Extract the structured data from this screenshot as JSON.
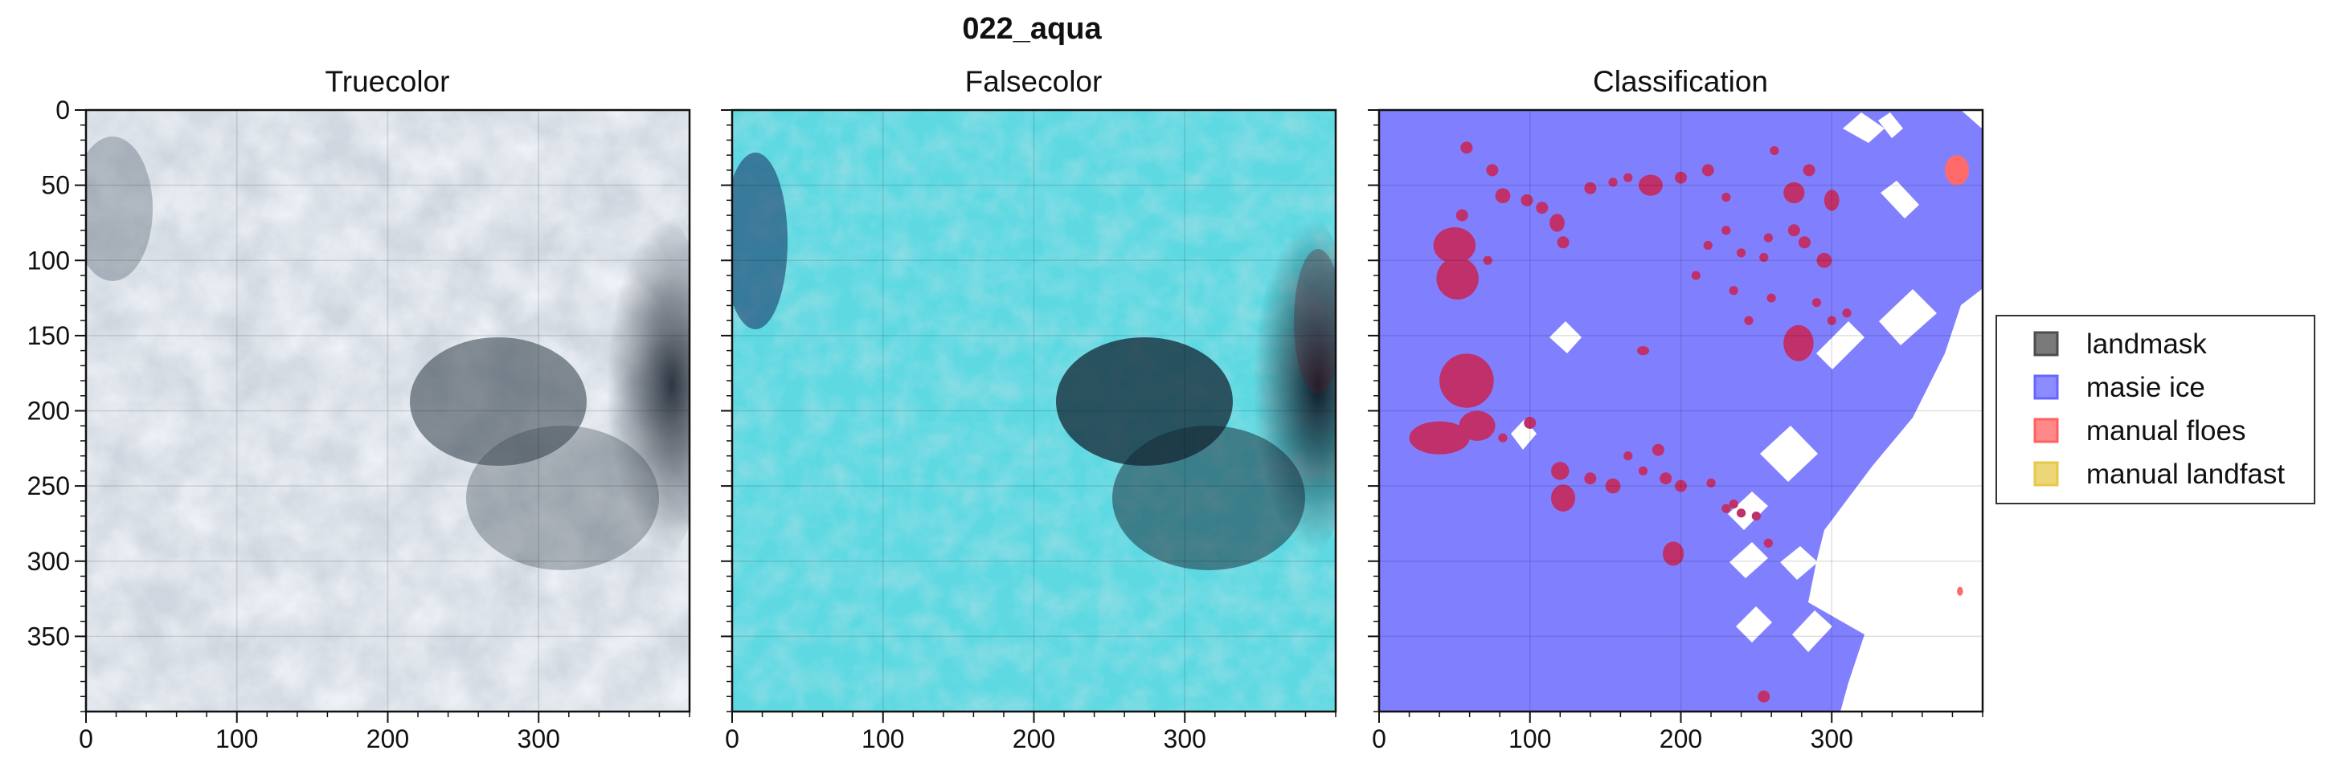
{
  "figure": {
    "title": "022_aqua"
  },
  "chart_data": [
    {
      "type": "image",
      "title": "Truecolor",
      "xlim": [
        0,
        400
      ],
      "ylim": [
        400,
        0
      ],
      "xticks": [
        0,
        100,
        200,
        300
      ],
      "yticks": [
        0,
        50,
        100,
        150,
        200,
        250,
        300,
        350
      ],
      "grid": true,
      "show_yticklabels": true
    },
    {
      "type": "image",
      "title": "Falsecolor",
      "xlim": [
        0,
        400
      ],
      "ylim": [
        400,
        0
      ],
      "xticks": [
        0,
        100,
        200,
        300
      ],
      "yticks": [
        0,
        50,
        100,
        150,
        200,
        250,
        300,
        350
      ],
      "grid": true,
      "show_yticklabels": false
    },
    {
      "type": "heatmap",
      "title": "Classification",
      "xlim": [
        0,
        400
      ],
      "ylim": [
        400,
        0
      ],
      "xticks": [
        0,
        100,
        200,
        300
      ],
      "yticks": [
        0,
        50,
        100,
        150,
        200,
        250,
        300,
        350
      ],
      "grid": true,
      "show_yticklabels": false,
      "legend": {
        "placement": "right",
        "entries": [
          {
            "label": "landmask",
            "color": "#4d4d4d"
          },
          {
            "label": "masie ice",
            "color": "#6666ff"
          },
          {
            "label": "manual floes",
            "color": "#ff6060"
          },
          {
            "label": "manual landfast",
            "color": "#e6c84a"
          }
        ]
      },
      "floe_color": "#c0306a",
      "ice_color": "#8080ff"
    }
  ]
}
